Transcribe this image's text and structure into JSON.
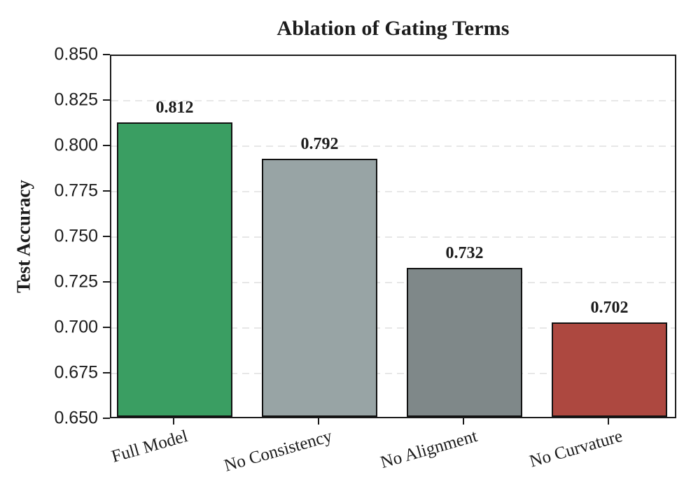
{
  "chart_data": {
    "type": "bar",
    "title": "Ablation of Gating Terms",
    "ylabel": "Test Accuracy",
    "xlabel": "",
    "categories": [
      "Full Model",
      "No Consistency",
      "No Alignment",
      "No Curvature"
    ],
    "values": [
      0.812,
      0.792,
      0.732,
      0.702
    ],
    "value_labels": [
      "0.812",
      "0.792",
      "0.732",
      "0.702"
    ],
    "bar_colors": [
      "#3a9e62",
      "#98a4a5",
      "#7f8889",
      "#ad4840"
    ],
    "bar_edge_color": "#111111",
    "ylim": [
      0.65,
      0.85
    ],
    "ytick_labels": [
      "0.850",
      "0.825",
      "0.800",
      "0.775",
      "0.750",
      "0.725",
      "0.700",
      "0.675",
      "0.650"
    ],
    "ytick_values": [
      0.85,
      0.825,
      0.8,
      0.775,
      0.75,
      0.725,
      0.7,
      0.675,
      0.65
    ],
    "grid": "horizontal dashed, on",
    "grid_color": "#e7e7e7",
    "x_label_rotation_deg": -16,
    "legend": "none"
  }
}
